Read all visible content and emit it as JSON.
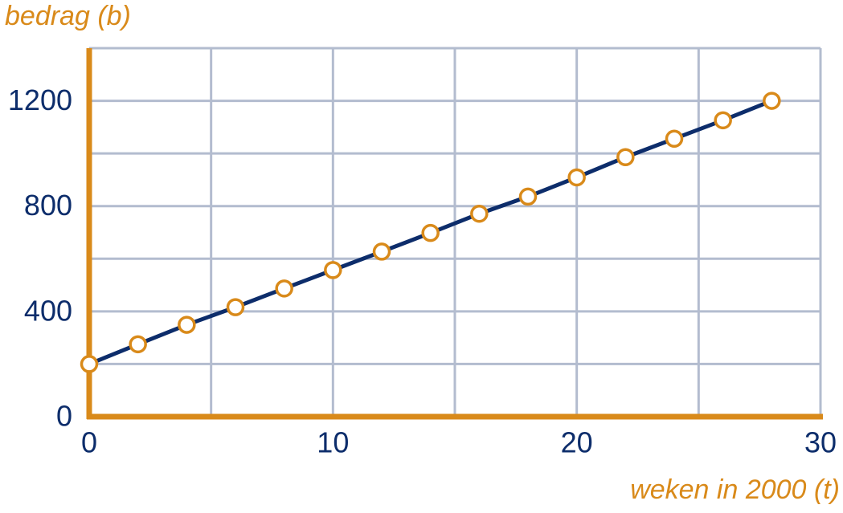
{
  "chart_data": {
    "type": "line",
    "x_label": "weken in 2000 (t)",
    "y_label": "bedrag (b)",
    "x": [
      0,
      2,
      4,
      6,
      8,
      10,
      12,
      14,
      16,
      18,
      20,
      22,
      24,
      26,
      28
    ],
    "series": [
      {
        "color": "#0d2d6b",
        "marker_color": "#d98a1a",
        "values": [
          200,
          275,
          349,
          416,
          487,
          557,
          627,
          698,
          771,
          836,
          909,
          986,
          1056,
          1126,
          1200
        ]
      }
    ],
    "xlim": [
      0,
      30
    ],
    "ylim": [
      0,
      1400
    ],
    "xticks": [
      0,
      10,
      20,
      30
    ],
    "yticks": [
      0,
      400,
      800,
      1200
    ],
    "x_gridlines": [
      5,
      10,
      15,
      20,
      25,
      30
    ],
    "y_gridlines": [
      200,
      400,
      600,
      800,
      1000,
      1200,
      1400
    ],
    "grid": true,
    "grid_color": "#b3bccf",
    "axis_color": "#d98a1a"
  }
}
